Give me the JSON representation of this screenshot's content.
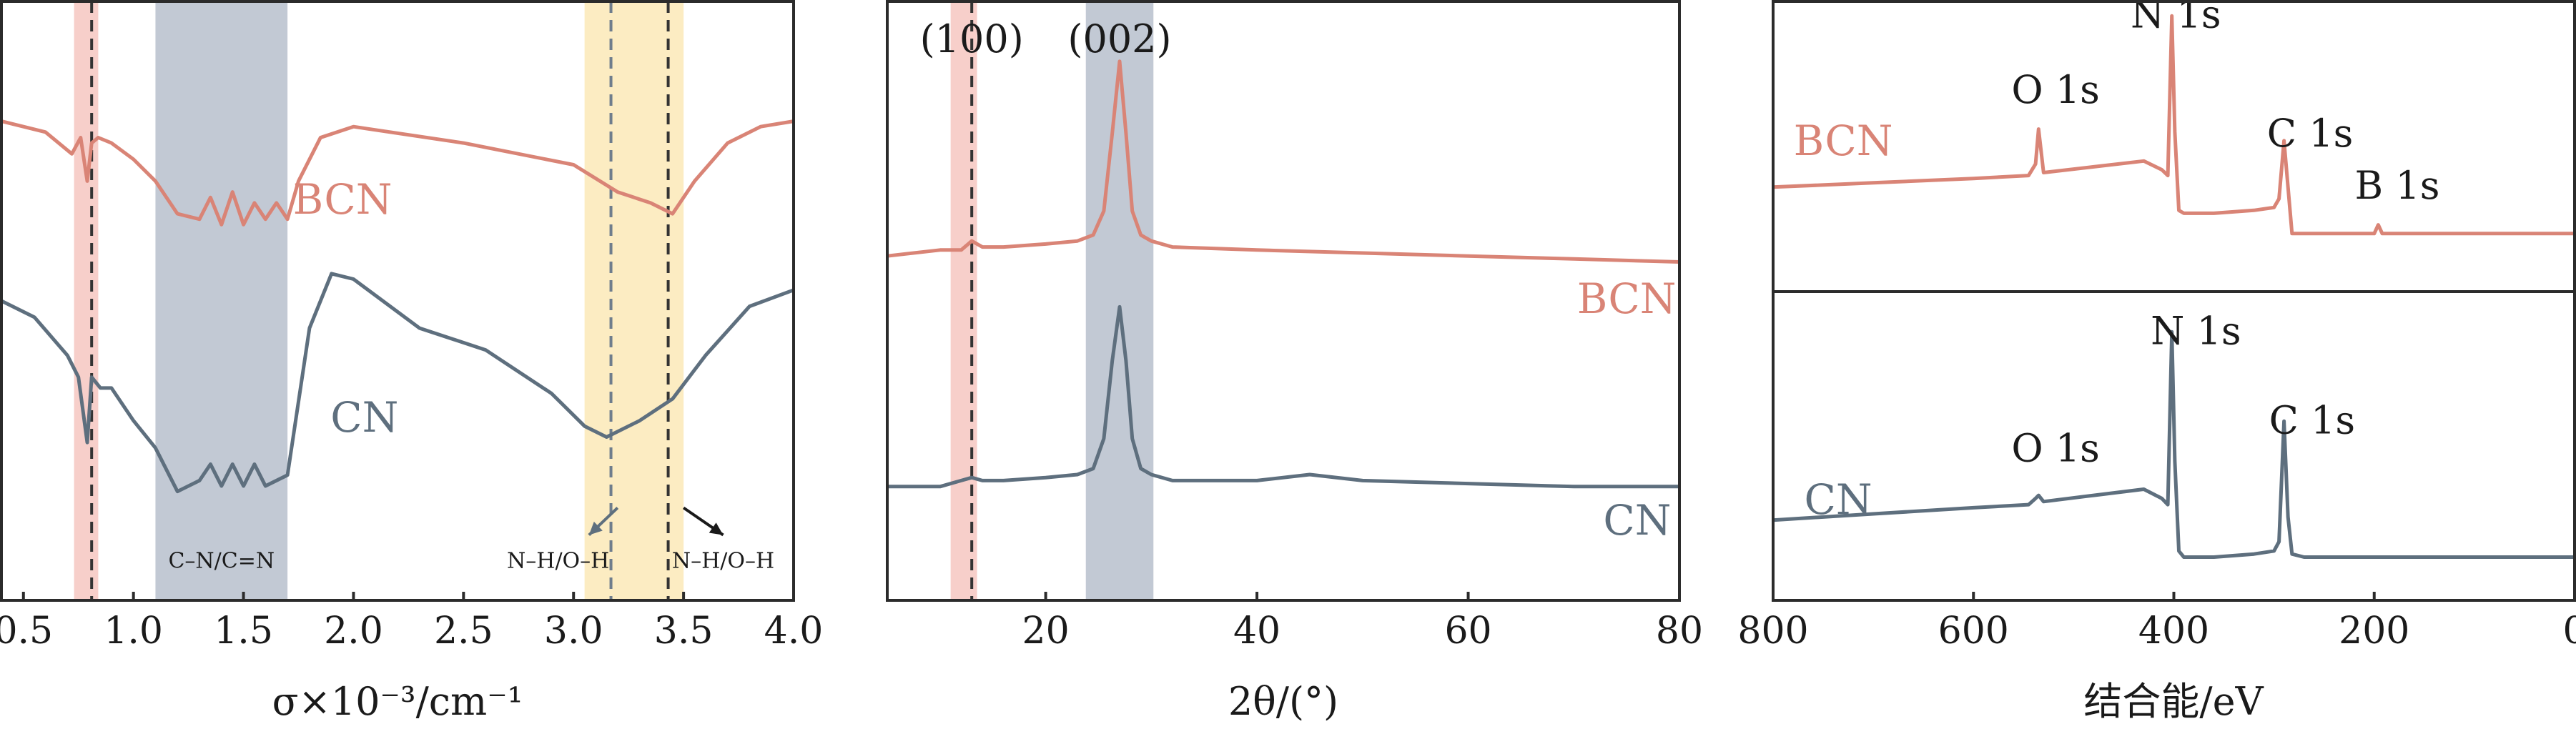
{
  "colors": {
    "bcn": "#d98476",
    "cn": "#5e6f7e",
    "frame": "#2b2b2b",
    "pink_band": "#f6c7c1",
    "gray_band": "#b7c0cc",
    "yellow_band": "#fbe9b7"
  },
  "chart_data": [
    {
      "id": "ftir",
      "type": "line",
      "xlabel": "σ×10⁻³/cm⁻¹",
      "xlim": [
        0.4,
        4.0
      ],
      "ylim": [
        -0.05,
        1.05
      ],
      "ticks": [
        0.5,
        1.0,
        1.5,
        2.0,
        2.5,
        3.0,
        3.5,
        4.0
      ],
      "tick_labels": [
        "0.5",
        "1.0",
        "1.5",
        "2.0",
        "2.5",
        "3.0",
        "3.5",
        "4.0"
      ],
      "bands": [
        {
          "x0": 0.73,
          "x1": 0.84,
          "color": "pink_band"
        },
        {
          "x0": 1.1,
          "x1": 1.7,
          "color": "gray_band"
        },
        {
          "x0": 3.05,
          "x1": 3.5,
          "color": "yellow_band"
        }
      ],
      "vlines": [
        {
          "x": 0.81,
          "color": "#333333"
        },
        {
          "x": 3.17,
          "color": "#6f7d8c"
        },
        {
          "x": 3.43,
          "color": "#333333"
        }
      ],
      "series": [
        {
          "name": "BCN",
          "color": "bcn",
          "label": "BCN",
          "label_xy": [
            1.95,
            0.66
          ],
          "x": [
            0.4,
            0.6,
            0.72,
            0.76,
            0.79,
            0.81,
            0.84,
            0.9,
            1.0,
            1.1,
            1.2,
            1.3,
            1.35,
            1.4,
            1.45,
            1.5,
            1.55,
            1.6,
            1.65,
            1.7,
            1.75,
            1.85,
            2.0,
            2.5,
            3.0,
            3.2,
            3.35,
            3.45,
            3.55,
            3.7,
            3.85,
            4.0
          ],
          "y": [
            0.83,
            0.81,
            0.77,
            0.8,
            0.72,
            0.79,
            0.8,
            0.79,
            0.76,
            0.72,
            0.66,
            0.65,
            0.69,
            0.64,
            0.7,
            0.64,
            0.68,
            0.65,
            0.68,
            0.65,
            0.72,
            0.8,
            0.82,
            0.79,
            0.75,
            0.7,
            0.68,
            0.66,
            0.72,
            0.79,
            0.82,
            0.83
          ]
        },
        {
          "name": "CN",
          "color": "cn",
          "label": "CN",
          "label_xy": [
            2.05,
            0.26
          ],
          "x": [
            0.4,
            0.55,
            0.7,
            0.75,
            0.79,
            0.81,
            0.85,
            0.9,
            1.0,
            1.1,
            1.2,
            1.3,
            1.35,
            1.4,
            1.45,
            1.5,
            1.55,
            1.6,
            1.7,
            1.8,
            1.9,
            2.0,
            2.3,
            2.6,
            2.9,
            3.05,
            3.15,
            3.3,
            3.45,
            3.6,
            3.8,
            4.0
          ],
          "y": [
            0.5,
            0.47,
            0.4,
            0.36,
            0.24,
            0.36,
            0.34,
            0.34,
            0.28,
            0.23,
            0.15,
            0.17,
            0.2,
            0.16,
            0.2,
            0.16,
            0.2,
            0.16,
            0.18,
            0.45,
            0.55,
            0.54,
            0.45,
            0.41,
            0.33,
            0.27,
            0.25,
            0.28,
            0.32,
            0.4,
            0.49,
            0.52
          ]
        }
      ],
      "annotations": [
        {
          "text": "C–N/C=N",
          "x": 1.4,
          "y": 0.01
        },
        {
          "text": "N–H/O–H",
          "x": 2.93,
          "y": 0.01
        },
        {
          "text": "N–H/O–H",
          "x": 3.68,
          "y": 0.01
        }
      ],
      "arrows": [
        {
          "from": [
            3.2,
            0.12
          ],
          "to": [
            3.07,
            0.07
          ]
        },
        {
          "from": [
            3.5,
            0.12
          ],
          "to": [
            3.68,
            0.07
          ]
        }
      ]
    },
    {
      "id": "xrd",
      "type": "line",
      "xlabel": "2θ/(°)",
      "xlim": [
        5,
        80
      ],
      "ylim": [
        0,
        1
      ],
      "ticks": [
        20,
        40,
        60,
        80
      ],
      "tick_labels": [
        "20",
        "40",
        "60",
        "80"
      ],
      "bands": [
        {
          "x0": 11,
          "x1": 13.5,
          "color": "pink_band"
        },
        {
          "x0": 23.8,
          "x1": 30.2,
          "color": "gray_band"
        }
      ],
      "vlines": [
        {
          "x": 13.0,
          "color": "#333333"
        }
      ],
      "series": [
        {
          "name": "BCN",
          "color": "bcn",
          "label": "BCN",
          "label_xy": [
            75,
            0.48
          ],
          "x": [
            5,
            10,
            12,
            13,
            14,
            16,
            20,
            23,
            24.5,
            25.5,
            26.3,
            27.0,
            27.6,
            28.2,
            29,
            30,
            32,
            40,
            50,
            60,
            70,
            80
          ],
          "y": [
            0.575,
            0.585,
            0.585,
            0.6,
            0.59,
            0.59,
            0.595,
            0.6,
            0.61,
            0.65,
            0.78,
            0.9,
            0.78,
            0.65,
            0.61,
            0.6,
            0.59,
            0.585,
            0.58,
            0.575,
            0.57,
            0.565
          ]
        },
        {
          "name": "CN",
          "color": "cn",
          "label": "CN",
          "label_xy": [
            76,
            0.11
          ],
          "x": [
            5,
            10,
            12,
            13,
            14,
            16,
            20,
            23,
            24.5,
            25.5,
            26.3,
            27.0,
            27.6,
            28.2,
            29,
            30,
            32,
            40,
            45,
            50,
            60,
            70,
            80
          ],
          "y": [
            0.19,
            0.19,
            0.2,
            0.205,
            0.2,
            0.2,
            0.205,
            0.21,
            0.22,
            0.27,
            0.4,
            0.49,
            0.4,
            0.27,
            0.22,
            0.21,
            0.2,
            0.2,
            0.21,
            0.2,
            0.195,
            0.19,
            0.19
          ]
        }
      ],
      "annotations": [
        {
          "text": "(100)",
          "x": 13,
          "y": 0.915
        },
        {
          "text": "(002)",
          "x": 27,
          "y": 0.915
        }
      ]
    },
    {
      "id": "xps",
      "type": "line",
      "xlabel": "结合能/eV",
      "xlim": [
        800,
        0
      ],
      "ticks": [
        800,
        600,
        400,
        200,
        0
      ],
      "tick_labels": [
        "800",
        "600",
        "400",
        "200",
        "0"
      ],
      "panels": [
        {
          "name": "BCN",
          "ylim": [
            0,
            1
          ],
          "series": {
            "name": "BCN",
            "color": "bcn",
            "label": "BCN",
            "label_xy": [
              730,
              0.47
            ],
            "x": [
              800,
              700,
              600,
              545,
              538,
              535,
              530,
              480,
              430,
              412,
              406,
              402,
              399,
              395,
              390,
              360,
              320,
              300,
              295,
              290,
              286,
              282,
              270,
              250,
              200,
              196,
              192,
              150,
              100,
              0
            ],
            "y": [
              0.36,
              0.375,
              0.39,
              0.4,
              0.44,
              0.56,
              0.41,
              0.43,
              0.45,
              0.42,
              0.4,
              0.95,
              0.55,
              0.28,
              0.27,
              0.27,
              0.28,
              0.29,
              0.32,
              0.52,
              0.36,
              0.2,
              0.2,
              0.2,
              0.2,
              0.23,
              0.2,
              0.2,
              0.2,
              0.2
            ]
          },
          "peaks": [
            {
              "text": "O 1s",
              "x": 518,
              "y": 0.65
            },
            {
              "text": "N 1s",
              "x": 398,
              "y": 0.91
            },
            {
              "text": "C 1s",
              "x": 264,
              "y": 0.5
            },
            {
              "text": "B 1s",
              "x": 177,
              "y": 0.32
            }
          ]
        },
        {
          "name": "CN",
          "ylim": [
            0,
            1
          ],
          "series": {
            "name": "CN",
            "color": "cn",
            "label": "CN",
            "label_xy": [
              735,
              0.28
            ],
            "x": [
              800,
              700,
              600,
              545,
              538,
              535,
              530,
              480,
              430,
              412,
              406,
              402,
              399,
              395,
              390,
              360,
              320,
              300,
              295,
              290,
              286,
              282,
              270,
              250,
              200,
              100,
              0
            ],
            "y": [
              0.26,
              0.28,
              0.3,
              0.31,
              0.33,
              0.34,
              0.32,
              0.34,
              0.36,
              0.33,
              0.31,
              0.87,
              0.45,
              0.16,
              0.14,
              0.14,
              0.15,
              0.16,
              0.19,
              0.58,
              0.27,
              0.15,
              0.14,
              0.14,
              0.14,
              0.14,
              0.14
            ]
          },
          "peaks": [
            {
              "text": "O 1s",
              "x": 518,
              "y": 0.45
            },
            {
              "text": "N 1s",
              "x": 378,
              "y": 0.83
            },
            {
              "text": "C 1s",
              "x": 262,
              "y": 0.54
            }
          ]
        }
      ]
    }
  ]
}
